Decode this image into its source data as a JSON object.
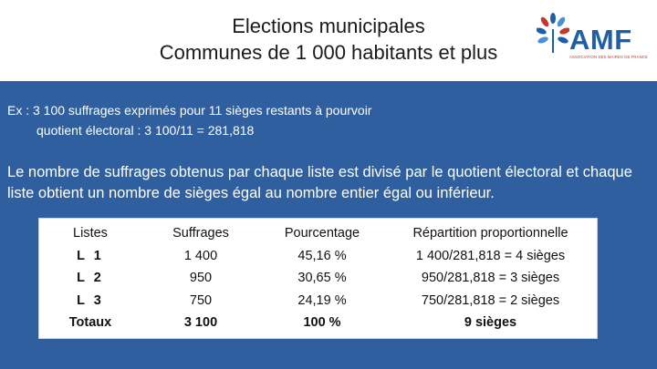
{
  "header": {
    "title_line1": "Elections municipales",
    "title_line2": "Communes de 1 000 habitants et plus",
    "logo": {
      "text": "AMF",
      "tagline": "ASSOCIATION DES MAIRES DE FRANCE",
      "icon": "tree-leaves-icon",
      "brand_color": "#1f5fa8",
      "leaf_colors": [
        "#1f5fa8",
        "#c0392b",
        "#4b91d6"
      ]
    }
  },
  "example": {
    "line1": "Ex : 3 100 suffrages exprimés pour 11 sièges restants à pourvoir",
    "line2": "quotient électoral : 3 100/11 = 281,818"
  },
  "paragraph": "Le nombre de suffrages obtenus par chaque liste est divisé par le quotient électoral et chaque liste obtient un nombre de sièges égal au nombre entier égal ou inférieur.",
  "table": {
    "headers": [
      "Listes",
      "Suffrages",
      "Pourcentage",
      "Répartition proportionnelle"
    ],
    "rows": [
      [
        "L 1",
        "1 400",
        "45,16 %",
        "1 400/281,818 = 4 sièges"
      ],
      [
        "L 2",
        "950",
        "30,65 %",
        "950/281,818 = 3 sièges"
      ],
      [
        "L 3",
        "750",
        "24,19 %",
        "750/281,818 = 2 sièges"
      ]
    ],
    "totals": [
      "Totaux",
      "3 100",
      "100 %",
      "9 sièges"
    ]
  },
  "colors": {
    "panel_bg": "#2f5f9e",
    "text_on_panel": "#ffffff"
  }
}
